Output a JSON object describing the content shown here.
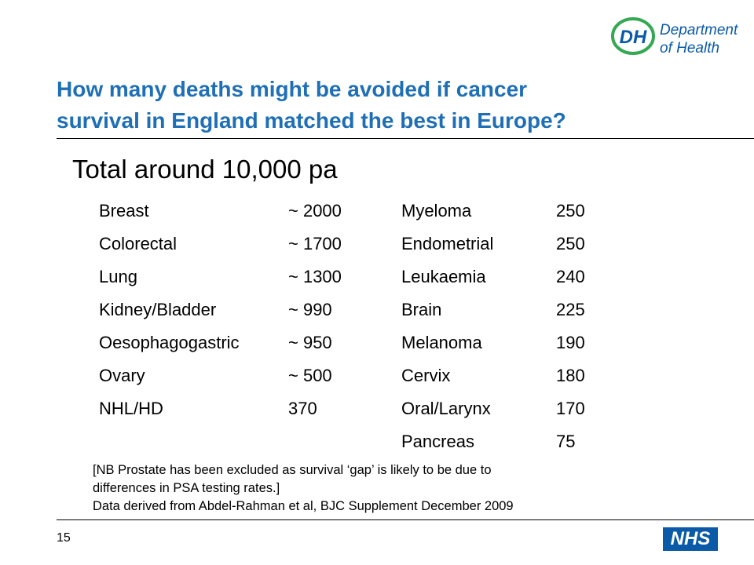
{
  "logos": {
    "dh_mark": "DH",
    "dh_line1": "Department",
    "dh_line2": "of Health",
    "nhs": "NHS"
  },
  "colors": {
    "title": "#1f6fb6",
    "dh_green": "#34a853",
    "dh_blue": "#0a5aa8",
    "nhs_blue": "#0a5aa8"
  },
  "title": {
    "line1": "How many deaths might be avoided if cancer",
    "line2": "survival in England matched the best in Europe?"
  },
  "subtitle": "Total around 10,000 pa",
  "left_rows": [
    {
      "cancer": "Breast",
      "deaths": "~ 2000"
    },
    {
      "cancer": "Colorectal",
      "deaths": "~ 1700"
    },
    {
      "cancer": "Lung",
      "deaths": "~ 1300"
    },
    {
      "cancer": "Kidney/Bladder",
      "deaths": "~ 990"
    },
    {
      "cancer": "Oesophagogastric",
      "deaths": "~ 950"
    },
    {
      "cancer": "Ovary",
      "deaths": "~ 500"
    },
    {
      "cancer": "NHL/HD",
      "deaths": "370"
    }
  ],
  "right_rows": [
    {
      "cancer": "Myeloma",
      "deaths": "250"
    },
    {
      "cancer": "Endometrial",
      "deaths": "250"
    },
    {
      "cancer": "Leukaemia",
      "deaths": "240"
    },
    {
      "cancer": "Brain",
      "deaths": "225"
    },
    {
      "cancer": "Melanoma",
      "deaths": "190"
    },
    {
      "cancer": "Cervix",
      "deaths": "180"
    },
    {
      "cancer": "Oral/Larynx",
      "deaths": "170"
    },
    {
      "cancer": "Pancreas",
      "deaths": "75"
    }
  ],
  "note": {
    "line1": "[NB Prostate has been excluded as survival ‘gap’ is likely to be due to",
    "line2": "differences in PSA testing rates.]",
    "line3": "Data derived from Abdel-Rahman et al, BJC Supplement December 2009"
  },
  "page_number": "15"
}
